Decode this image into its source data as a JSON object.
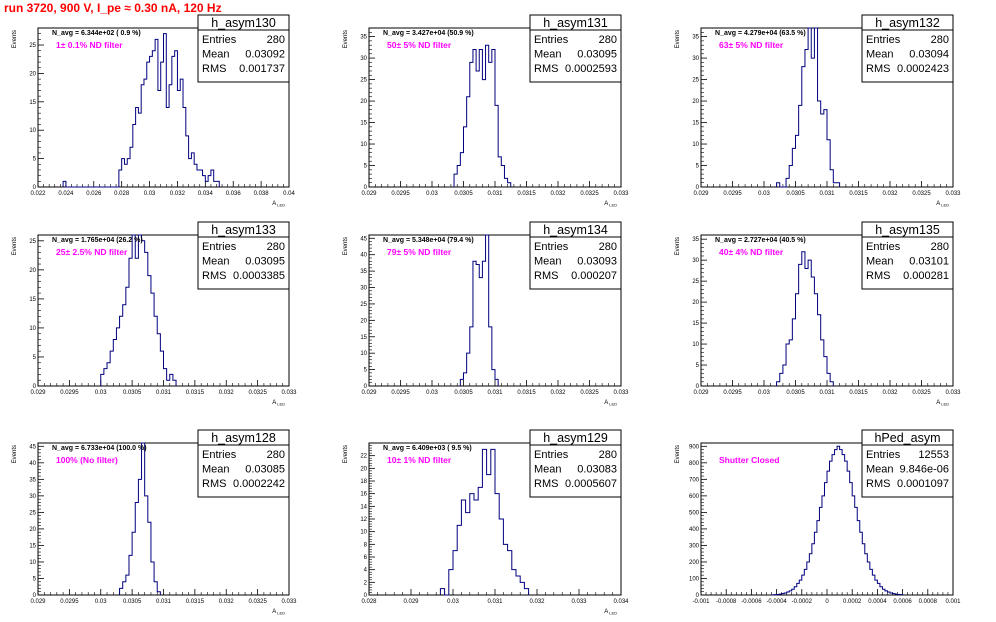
{
  "run_title": "run 3720,   900 V, I_pe ≈ 0.30 nA, 120 Hz",
  "colors": {
    "histogram": "#00007f",
    "filter_label": "#ff00ff",
    "run_title": "#ff0000"
  },
  "stat_labels": [
    "Entries",
    "Mean",
    "RMS"
  ],
  "chart_data": [
    {
      "type": "histogram",
      "name": "h_asym130",
      "navg": "N_avg = 6.344e+02 ( 0.9 %)",
      "filter": "1± 0.1% ND filter",
      "xlabel": "A",
      "xlabel_sub": "LED",
      "ylabel": "Events",
      "xlim": [
        0.022,
        0.04
      ],
      "ylim": [
        0,
        28
      ],
      "xticks": [
        "0.022",
        "0.024",
        "0.026",
        "0.028",
        "0.03",
        "0.032",
        "0.034",
        "0.036",
        "0.038",
        "0.04"
      ],
      "yticks": [
        0,
        5,
        10,
        15,
        20,
        25
      ],
      "stats": {
        "Entries": "280",
        "Mean": "0.03092",
        "RMS": "0.001737"
      },
      "bin_start": 0.0238,
      "bin_width": 0.0002,
      "values": [
        1,
        0,
        0,
        0,
        0,
        0,
        0,
        0,
        0,
        0,
        0,
        0,
        0,
        0,
        0,
        0,
        0,
        0,
        0,
        0,
        3,
        5,
        4,
        5,
        7,
        11,
        14,
        13,
        18,
        19,
        22,
        23,
        24,
        26,
        17,
        22,
        27,
        14,
        18,
        23,
        24,
        17,
        19,
        14,
        9,
        5,
        6,
        4,
        3,
        3,
        2,
        1,
        2,
        3,
        1,
        1
      ]
    },
    {
      "type": "histogram",
      "name": "h_asym131",
      "navg": "N_avg = 3.427e+04 (50.9 %)",
      "filter": "50± 5% ND filter",
      "xlabel": "A",
      "xlabel_sub": "LED",
      "ylabel": "Events",
      "xlim": [
        0.029,
        0.033
      ],
      "ylim": [
        0,
        37
      ],
      "xticks": [
        "0.029",
        "0.0295",
        "0.03",
        "0.0305",
        "0.031",
        "0.0315",
        "0.032",
        "0.0325",
        "0.033"
      ],
      "yticks": [
        0,
        5,
        10,
        15,
        20,
        25,
        30,
        35
      ],
      "stats": {
        "Entries": "280",
        "Mean": "0.03095",
        "RMS": "0.0002593"
      },
      "bin_start": 0.03035,
      "bin_width": 5e-05,
      "values": [
        3,
        5,
        8,
        14,
        21,
        29,
        32,
        27,
        32,
        25,
        33,
        29,
        32,
        19,
        7,
        5,
        2,
        1
      ]
    },
    {
      "type": "histogram",
      "name": "h_asym132",
      "navg": "N_avg = 4.279e+04 (63.5 %)",
      "filter": "63± 5% ND filter",
      "xlabel": "A",
      "xlabel_sub": "LED",
      "ylabel": "Events",
      "xlim": [
        0.029,
        0.033
      ],
      "ylim": [
        0,
        37
      ],
      "xticks": [
        "0.029",
        "0.0295",
        "0.03",
        "0.0305",
        "0.031",
        "0.0315",
        "0.032",
        "0.0325",
        "0.033"
      ],
      "yticks": [
        0,
        5,
        10,
        15,
        20,
        25,
        30,
        35
      ],
      "stats": {
        "Entries": "280",
        "Mean": "0.03094",
        "RMS": "0.0002423"
      },
      "bin_start": 0.0302,
      "bin_width": 5e-05,
      "values": [
        1,
        0,
        0,
        2,
        5,
        9,
        12,
        19,
        28,
        32,
        37,
        30,
        37,
        20,
        17,
        18,
        11,
        4,
        1,
        1
      ]
    },
    {
      "type": "histogram",
      "name": "h_asym133",
      "navg": "N_avg = 1.765e+04 (26.2 %)",
      "filter": "25± 2.5% ND filter",
      "xlabel": "A",
      "xlabel_sub": "LED",
      "ylabel": "Events",
      "xlim": [
        0.029,
        0.033
      ],
      "ylim": [
        0,
        26
      ],
      "xticks": [
        "0.029",
        "0.0295",
        "0.03",
        "0.0305",
        "0.031",
        "0.0315",
        "0.032",
        "0.0325",
        "0.033"
      ],
      "yticks": [
        0,
        5,
        10,
        15,
        20,
        25
      ],
      "stats": {
        "Entries": "280",
        "Mean": "0.03095",
        "RMS": "0.0003385"
      },
      "bin_start": 0.03,
      "bin_width": 5e-05,
      "values": [
        2,
        3,
        4,
        6,
        8,
        10,
        12,
        14,
        17,
        22,
        26,
        22,
        26,
        25,
        23,
        19,
        16,
        12,
        9,
        6,
        3,
        1,
        2,
        1
      ]
    },
    {
      "type": "histogram",
      "name": "h_asym134",
      "navg": "N_avg = 5.348e+04 (79.4 %)",
      "filter": "79± 5% ND filter",
      "xlabel": "A",
      "xlabel_sub": "LED",
      "ylabel": "Events",
      "xlim": [
        0.029,
        0.033
      ],
      "ylim": [
        0,
        46
      ],
      "xticks": [
        "0.029",
        "0.0295",
        "0.03",
        "0.0305",
        "0.031",
        "0.0315",
        "0.032",
        "0.0325",
        "0.033"
      ],
      "yticks": [
        0,
        5,
        10,
        15,
        20,
        25,
        30,
        35,
        40,
        45
      ],
      "stats": {
        "Entries": "280",
        "Mean": "0.03093",
        "RMS": "0.000207"
      },
      "bin_start": 0.03045,
      "bin_width": 5e-05,
      "values": [
        2,
        4,
        10,
        18,
        38,
        37,
        33,
        38,
        46,
        18,
        5,
        2
      ]
    },
    {
      "type": "histogram",
      "name": "h_asym135",
      "navg": "N_avg = 2.727e+04 (40.5 %)",
      "filter": "40± 4% ND filter",
      "xlabel": "A",
      "xlabel_sub": "LED",
      "ylabel": "Events",
      "xlim": [
        0.029,
        0.033
      ],
      "ylim": [
        0,
        36
      ],
      "xticks": [
        "0.029",
        "0.0295",
        "0.03",
        "0.0305",
        "0.031",
        "0.0315",
        "0.032",
        "0.0325",
        "0.033"
      ],
      "yticks": [
        0,
        5,
        10,
        15,
        20,
        25,
        30,
        35
      ],
      "stats": {
        "Entries": "280",
        "Mean": "0.03101",
        "RMS": "0.000281"
      },
      "bin_start": 0.0302,
      "bin_width": 5e-05,
      "values": [
        1,
        3,
        5,
        10,
        11,
        16,
        22,
        29,
        32,
        28,
        30,
        26,
        22,
        17,
        11,
        7,
        3,
        1
      ]
    },
    {
      "type": "histogram",
      "name": "h_asym128",
      "navg": "N_avg = 6.733e+04 (100.0 %)",
      "filter": "100% (No filter)",
      "xlabel": "A",
      "xlabel_sub": "LED",
      "ylabel": "Events",
      "xlim": [
        0.029,
        0.033
      ],
      "ylim": [
        0,
        46
      ],
      "xticks": [
        "0.029",
        "0.0295",
        "0.03",
        "0.0305",
        "0.031",
        "0.0315",
        "0.032",
        "0.0325",
        "0.033"
      ],
      "yticks": [
        0,
        5,
        10,
        15,
        20,
        25,
        30,
        35,
        40,
        45
      ],
      "stats": {
        "Entries": "280",
        "Mean": "0.03085",
        "RMS": "0.0002242"
      },
      "bin_start": 0.0303,
      "bin_width": 5e-05,
      "values": [
        2,
        4,
        6,
        12,
        19,
        28,
        35,
        46,
        30,
        22,
        10,
        4,
        1
      ]
    },
    {
      "type": "histogram",
      "name": "h_asym129",
      "navg": "N_avg = 6.409e+03 ( 9.5 %)",
      "filter": "10± 1% ND filter",
      "xlabel": "A",
      "xlabel_sub": "LED",
      "ylabel": "Events",
      "xlim": [
        0.028,
        0.034
      ],
      "ylim": [
        0,
        24
      ],
      "xticks": [
        "0.028",
        "0.029",
        "0.03",
        "0.031",
        "0.032",
        "0.033",
        "0.034"
      ],
      "yticks": [
        0,
        2,
        4,
        6,
        8,
        10,
        12,
        14,
        16,
        18,
        20,
        22
      ],
      "stats": {
        "Entries": "280",
        "Mean": "0.03083",
        "RMS": "0.0005607"
      },
      "bin_start": 0.0297,
      "bin_width": 0.0001,
      "values": [
        1,
        0,
        4,
        7,
        11,
        15,
        13,
        16,
        15,
        17,
        23,
        19,
        23,
        16,
        12,
        8,
        7,
        4,
        3,
        2,
        1
      ]
    },
    {
      "type": "histogram",
      "name": "hPed_asym",
      "navg": "",
      "filter": "Shutter Closed",
      "xlabel": "",
      "xlabel_sub": "",
      "ylabel": "Events",
      "xlim": [
        -0.001,
        0.001
      ],
      "ylim": [
        0,
        920
      ],
      "xticks": [
        "-0.001",
        "-0.0008",
        "-0.0006",
        "-0.0004",
        "-0.0002",
        "0",
        "0.0002",
        "0.0004",
        "0.0006",
        "0.0008",
        "0.001"
      ],
      "yticks": [
        0,
        100,
        200,
        300,
        400,
        500,
        600,
        700,
        800,
        900
      ],
      "stats": {
        "Entries": "12553",
        "Mean": "9.846e-06",
        "RMS": "0.0001097"
      },
      "bin_start": -0.00044,
      "bin_width": 2e-05,
      "values": [
        1,
        2,
        3,
        5,
        8,
        12,
        18,
        25,
        35,
        50,
        70,
        90,
        120,
        155,
        200,
        250,
        310,
        380,
        450,
        530,
        600,
        680,
        750,
        810,
        850,
        880,
        900,
        880,
        850,
        810,
        750,
        680,
        600,
        530,
        450,
        380,
        310,
        250,
        200,
        155,
        120,
        90,
        70,
        50,
        35,
        25,
        18,
        12,
        8,
        5,
        3,
        2
      ]
    }
  ]
}
